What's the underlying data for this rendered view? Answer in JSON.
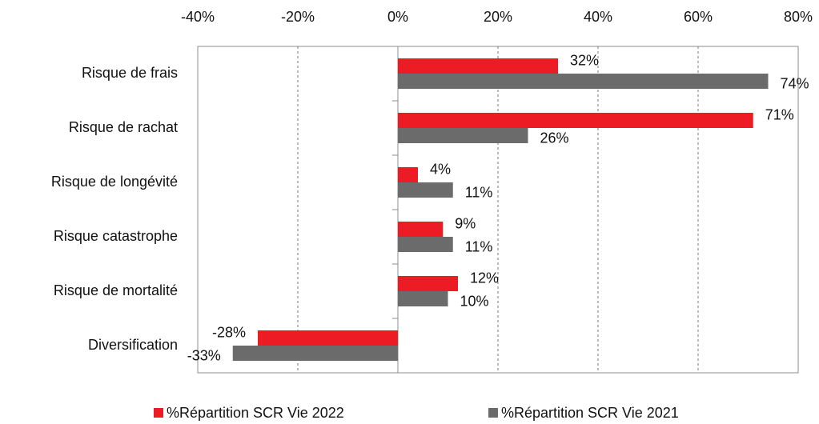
{
  "chart_data": {
    "type": "hbar",
    "categories": [
      "Risque de frais",
      "Risque de rachat",
      "Risque de longévité",
      "Risque catastrophe",
      "Risque de mortalité",
      "Diversification"
    ],
    "series": [
      {
        "name": "%Répartition SCR Vie 2022",
        "color": "#ed1c24",
        "values": [
          32,
          71,
          4,
          9,
          12,
          -28
        ],
        "value_labels": [
          "32%",
          "71%",
          "4%",
          "9%",
          "12%",
          "-28%"
        ]
      },
      {
        "name": "%Répartition SCR Vie 2021",
        "color": "#6b6b6b",
        "values": [
          74,
          26,
          11,
          11,
          10,
          -33
        ],
        "value_labels": [
          "74%",
          "26%",
          "11%",
          "11%",
          "10%",
          "-33%"
        ]
      }
    ],
    "xlim": [
      -40,
      80
    ],
    "xticks": [
      {
        "value": -40,
        "label": "-40%"
      },
      {
        "value": -20,
        "label": "-20%"
      },
      {
        "value": 0,
        "label": "0%"
      },
      {
        "value": 20,
        "label": "20%"
      },
      {
        "value": 40,
        "label": "40%"
      },
      {
        "value": 60,
        "label": "60%"
      },
      {
        "value": 80,
        "label": "80%"
      }
    ],
    "grid": true,
    "legend": "bottom"
  }
}
